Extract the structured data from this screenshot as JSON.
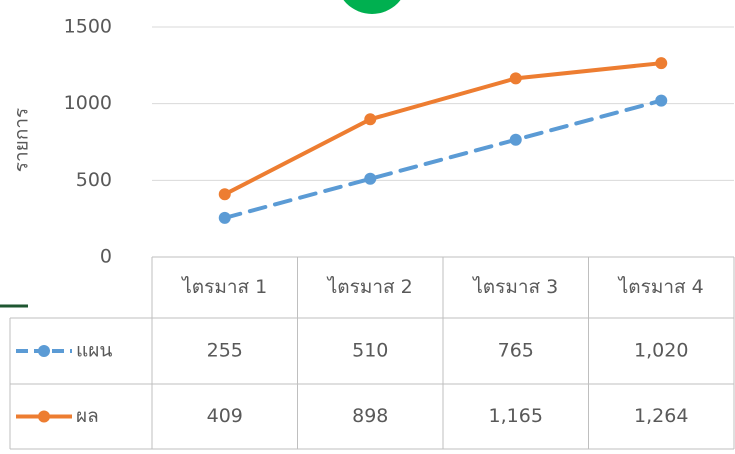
{
  "chart_data": {
    "type": "line",
    "y_label": "รายการ",
    "categories": [
      "ไตรมาส 1",
      "ไตรมาส 2",
      "ไตรมาส 3",
      "ไตรมาส 4"
    ],
    "series": [
      {
        "name": "แผน",
        "color": "#5b9bd5",
        "dash": true,
        "values": [
          255,
          510,
          765,
          1020
        ],
        "value_labels": [
          "255",
          "510",
          "765",
          "1,020"
        ]
      },
      {
        "name": "ผล",
        "color": "#ed7d31",
        "dash": false,
        "values": [
          409,
          898,
          1165,
          1264
        ],
        "value_labels": [
          "409",
          "898",
          "1,165",
          "1,264"
        ]
      }
    ],
    "ylim": [
      0,
      1500
    ],
    "yticks": [
      0,
      500,
      1000,
      1500
    ],
    "grid": true
  }
}
